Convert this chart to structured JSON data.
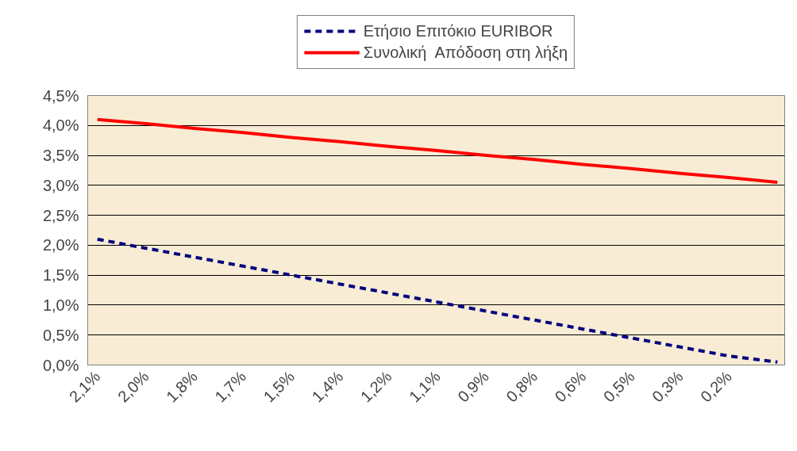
{
  "chart_data": {
    "type": "line",
    "categories": [
      "2,1%",
      "2,0%",
      "1,8%",
      "1,7%",
      "1,5%",
      "1,4%",
      "1,2%",
      "1,1%",
      "0,9%",
      "0,8%",
      "0,6%",
      "0,5%",
      "0,3%",
      "0,2%",
      null
    ],
    "series": [
      {
        "name": "Ετήσιο Επιτόκιο EURIBOR",
        "color": "#000080",
        "line_style": "dashed",
        "values": [
          2.1,
          1.95,
          1.8,
          1.65,
          1.5,
          1.35,
          1.2,
          1.05,
          0.9,
          0.75,
          0.6,
          0.45,
          0.3,
          0.15,
          0.05
        ]
      },
      {
        "name": "Συνολική  Απόδοση στη λήξη",
        "color": "#ff0000",
        "line_style": "solid",
        "values": [
          4.1,
          4.03,
          3.95,
          3.88,
          3.8,
          3.73,
          3.65,
          3.58,
          3.5,
          3.43,
          3.35,
          3.28,
          3.2,
          3.13,
          3.05
        ]
      }
    ],
    "ylim": [
      0,
      4.5
    ],
    "yticks": [
      {
        "value": 0,
        "label": "0,0%"
      },
      {
        "value": 0.5,
        "label": "0,5%"
      },
      {
        "value": 1,
        "label": "1,0%"
      },
      {
        "value": 1.5,
        "label": "1,5%"
      },
      {
        "value": 2,
        "label": "2,0%"
      },
      {
        "value": 2.5,
        "label": "2,5%"
      },
      {
        "value": 3,
        "label": "3,0%"
      },
      {
        "value": 3.5,
        "label": "3,5%"
      },
      {
        "value": 4,
        "label": "4,0%"
      },
      {
        "value": 4.5,
        "label": "4,5%"
      }
    ],
    "grid": "y",
    "legend": "top",
    "marker": "none"
  }
}
